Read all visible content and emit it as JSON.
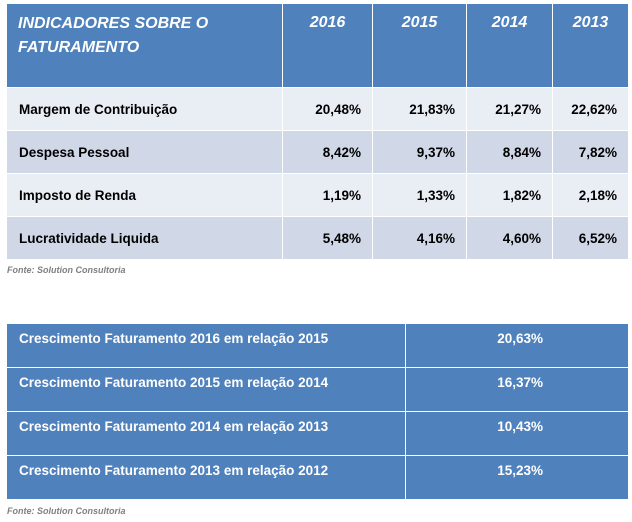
{
  "indicadores": {
    "title": "INDICADORES SOBRE O FATURAMENTO",
    "years": [
      "2016",
      "2015",
      "2014",
      "2013"
    ],
    "rows": [
      {
        "label": "Margem de Contribuição",
        "values": [
          "20,48%",
          "21,83%",
          "21,27%",
          "22,62%"
        ]
      },
      {
        "label": "Despesa Pessoal",
        "values": [
          "8,42%",
          "9,37%",
          "8,84%",
          "7,82%"
        ]
      },
      {
        "label": "Imposto de Renda",
        "values": [
          "1,19%",
          "1,33%",
          "1,82%",
          "2,18%"
        ]
      },
      {
        "label": "Lucratividade Liquida",
        "values": [
          "5,48%",
          "4,16%",
          "4,60%",
          "6,52%"
        ]
      }
    ],
    "source": "Fonte: Solution Consultoria"
  },
  "crescimento": {
    "rows": [
      {
        "label": "Crescimento Faturamento 2016 em relação 2015",
        "value": "20,63%"
      },
      {
        "label": "Crescimento Faturamento 2015 em relação 2014",
        "value": "16,37%"
      },
      {
        "label": "Crescimento Faturamento 2014 em relação 2013",
        "value": "10,43%"
      },
      {
        "label": "Crescimento Faturamento 2013 em relação 2012",
        "value": "15,23%"
      }
    ],
    "source": "Fonte: Solution Consultoria"
  },
  "colors": {
    "header_blue": "#4f81bd",
    "row_light": "#e9edf4",
    "row_medium": "#d0d8e8",
    "source_gray": "#7f7f7f"
  }
}
